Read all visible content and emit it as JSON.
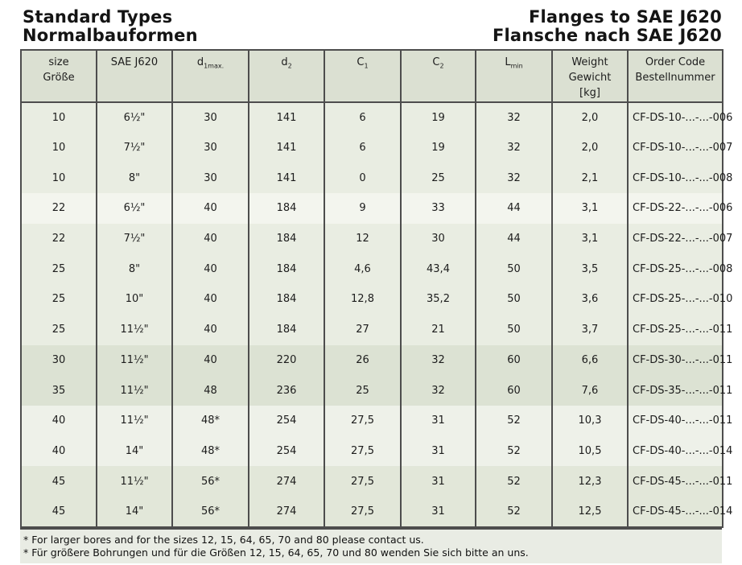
{
  "page": {
    "title_left_line1": "Standard Types",
    "title_left_line2": "Normalbauformen",
    "title_right_line1": "Flanges to SAE J620",
    "title_right_line2": "Flansche nach SAE J620"
  },
  "colors": {
    "header_bg": "#dbe0d2",
    "border_dark": "#4d4d4d",
    "footnote_bg": "#e9ece4",
    "band_light": "#e9ede2",
    "band_light2": "#eef1e9",
    "band_white": "#f3f5ee",
    "band_dark": "#dce2d3",
    "band_medium": "#e2e7d9",
    "text": "#1c1c1c"
  },
  "table": {
    "columns": [
      {
        "id": "size",
        "lines": [
          "size",
          "Größe"
        ]
      },
      {
        "id": "sae",
        "lines": [
          "SAE J620"
        ]
      },
      {
        "id": "d1max",
        "main": "d",
        "sub": "1max."
      },
      {
        "id": "d2",
        "main": "d",
        "sub": "2"
      },
      {
        "id": "c1",
        "main": "C",
        "sub": "1"
      },
      {
        "id": "c2",
        "main": "C",
        "sub": "2"
      },
      {
        "id": "lmin",
        "main": "L",
        "sub": "min"
      },
      {
        "id": "weight",
        "lines": [
          "Weight",
          "Gewicht",
          "[kg]"
        ]
      },
      {
        "id": "order",
        "lines": [
          "Order Code",
          "Bestellnummer"
        ]
      }
    ],
    "rows": [
      {
        "band": "light",
        "cells": [
          "10",
          "6½\"",
          "30",
          "141",
          "6",
          "19",
          "32",
          "2,0",
          "CF-DS-10-...-...-006"
        ]
      },
      {
        "band": "light",
        "cells": [
          "10",
          "7½\"",
          "30",
          "141",
          "6",
          "19",
          "32",
          "2,0",
          "CF-DS-10-...-...-007"
        ]
      },
      {
        "band": "light",
        "cells": [
          "10",
          "8\"",
          "30",
          "141",
          "0",
          "25",
          "32",
          "2,1",
          "CF-DS-10-...-...-008"
        ]
      },
      {
        "band": "white",
        "cells": [
          "22",
          "6½\"",
          "40",
          "184",
          "9",
          "33",
          "44",
          "3,1",
          "CF-DS-22-...-...-006"
        ]
      },
      {
        "band": "light",
        "cells": [
          "22",
          "7½\"",
          "40",
          "184",
          "12",
          "30",
          "44",
          "3,1",
          "CF-DS-22-...-...-007"
        ]
      },
      {
        "band": "light",
        "cells": [
          "25",
          "8\"",
          "40",
          "184",
          "4,6",
          "43,4",
          "50",
          "3,5",
          "CF-DS-25-...-...-008"
        ]
      },
      {
        "band": "light",
        "cells": [
          "25",
          "10\"",
          "40",
          "184",
          "12,8",
          "35,2",
          "50",
          "3,6",
          "CF-DS-25-...-...-010"
        ]
      },
      {
        "band": "light",
        "cells": [
          "25",
          "11½\"",
          "40",
          "184",
          "27",
          "21",
          "50",
          "3,7",
          "CF-DS-25-...-...-011"
        ]
      },
      {
        "band": "dark",
        "cells": [
          "30",
          "11½\"",
          "40",
          "220",
          "26",
          "32",
          "60",
          "6,6",
          "CF-DS-30-...-...-011"
        ]
      },
      {
        "band": "dark",
        "cells": [
          "35",
          "11½\"",
          "48",
          "236",
          "25",
          "32",
          "60",
          "7,6",
          "CF-DS-35-...-...-011"
        ]
      },
      {
        "band": "light2",
        "cells": [
          "40",
          "11½\"",
          "48*",
          "254",
          "27,5",
          "31",
          "52",
          "10,3",
          "CF-DS-40-...-...-011"
        ]
      },
      {
        "band": "light2",
        "cells": [
          "40",
          "14\"",
          "48*",
          "254",
          "27,5",
          "31",
          "52",
          "10,5",
          "CF-DS-40-...-...-014"
        ]
      },
      {
        "band": "medium",
        "cells": [
          "45",
          "11½\"",
          "56*",
          "274",
          "27,5",
          "31",
          "52",
          "12,3",
          "CF-DS-45-...-...-011"
        ]
      },
      {
        "band": "medium",
        "cells": [
          "45",
          "14\"",
          "56*",
          "274",
          "27,5",
          "31",
          "52",
          "12,5",
          "CF-DS-45-...-...-014"
        ]
      }
    ]
  },
  "footnotes": [
    "* For larger bores and for the sizes 12, 15, 64, 65, 70 and 80 please contact us.",
    "* Für größere Bohrungen und für die Größen 12, 15, 64, 65, 70 und 80 wenden Sie sich bitte an uns."
  ]
}
